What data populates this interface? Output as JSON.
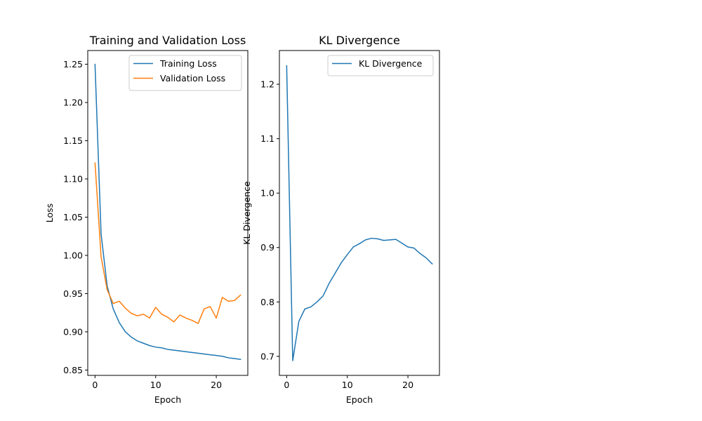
{
  "chart_data": [
    {
      "type": "line",
      "title": "Training and Validation Loss",
      "xlabel": "Epoch",
      "ylabel": "Loss",
      "xlim": [
        -1.2,
        25.2
      ],
      "ylim": [
        0.843,
        1.268
      ],
      "xticks": [
        0,
        10,
        20
      ],
      "yticks": [
        0.85,
        0.9,
        0.95,
        1.0,
        1.05,
        1.1,
        1.15,
        1.2,
        1.25
      ],
      "ytick_labels": [
        "0.85",
        "0.90",
        "0.95",
        "1.00",
        "1.05",
        "1.10",
        "1.15",
        "1.20",
        "1.25"
      ],
      "grid": false,
      "legend_position": "top-right",
      "x": [
        0,
        1,
        2,
        3,
        4,
        5,
        6,
        7,
        8,
        9,
        10,
        11,
        12,
        13,
        14,
        15,
        16,
        17,
        18,
        19,
        20,
        21,
        22,
        23,
        24
      ],
      "series": [
        {
          "name": "Training Loss",
          "color": "#1f77b4",
          "values": [
            1.25,
            1.028,
            0.96,
            0.93,
            0.912,
            0.9,
            0.893,
            0.888,
            0.885,
            0.882,
            0.88,
            0.879,
            0.877,
            0.876,
            0.875,
            0.874,
            0.873,
            0.872,
            0.871,
            0.87,
            0.869,
            0.868,
            0.866,
            0.865,
            0.864
          ]
        },
        {
          "name": "Validation Loss",
          "color": "#ff7f0e",
          "values": [
            1.121,
            0.998,
            0.955,
            0.937,
            0.94,
            0.931,
            0.924,
            0.921,
            0.923,
            0.918,
            0.932,
            0.923,
            0.919,
            0.913,
            0.922,
            0.918,
            0.915,
            0.911,
            0.93,
            0.933,
            0.918,
            0.945,
            0.94,
            0.941,
            0.948
          ]
        }
      ]
    },
    {
      "type": "line",
      "title": "KL Divergence",
      "xlabel": "Epoch",
      "ylabel": "KL Divergence",
      "xlim": [
        -1.2,
        25.2
      ],
      "ylim": [
        0.665,
        1.262
      ],
      "xticks": [
        0,
        10,
        20
      ],
      "yticks": [
        0.7,
        0.8,
        0.9,
        1.0,
        1.1,
        1.2
      ],
      "ytick_labels": [
        "0.7",
        "0.8",
        "0.9",
        "1.0",
        "1.1",
        "1.2"
      ],
      "grid": false,
      "legend_position": "top-right",
      "x": [
        0,
        1,
        2,
        3,
        4,
        5,
        6,
        7,
        8,
        9,
        10,
        11,
        12,
        13,
        14,
        15,
        16,
        17,
        18,
        19,
        20,
        21,
        22,
        23,
        24
      ],
      "series": [
        {
          "name": "KL Divergence",
          "color": "#1f77b4",
          "values": [
            1.234,
            0.692,
            0.764,
            0.787,
            0.791,
            0.8,
            0.811,
            0.834,
            0.853,
            0.872,
            0.887,
            0.901,
            0.907,
            0.914,
            0.917,
            0.916,
            0.913,
            0.914,
            0.915,
            0.908,
            0.901,
            0.899,
            0.889,
            0.881,
            0.87
          ]
        }
      ]
    }
  ]
}
